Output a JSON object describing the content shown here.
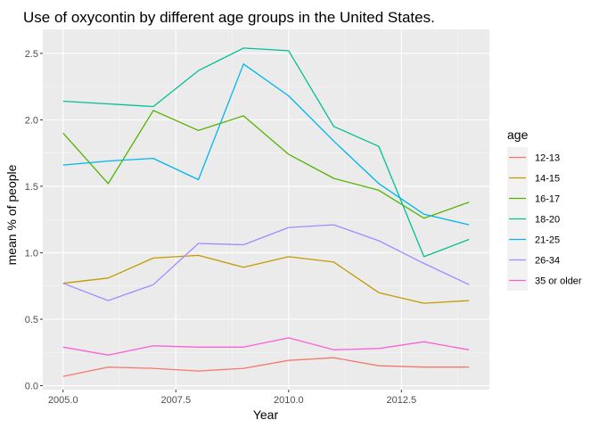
{
  "chart_data": {
    "type": "line",
    "title": "Use of oxycontin by different age groups in the United States.",
    "xlabel": "Year",
    "ylabel": "mean % of people",
    "x": [
      2005,
      2006,
      2007,
      2008,
      2009,
      2010,
      2011,
      2012,
      2013,
      2014
    ],
    "xlim": [
      2004.55,
      2014.45
    ],
    "ylim": [
      -0.03,
      2.68
    ],
    "x_ticks": [
      2005.0,
      2007.5,
      2010.0,
      2012.5
    ],
    "x_tick_labels": [
      "2005.0",
      "2007.5",
      "2010.0",
      "2012.5"
    ],
    "y_ticks": [
      0.0,
      0.5,
      1.0,
      1.5,
      2.0,
      2.5
    ],
    "y_tick_labels": [
      "0.0",
      "0.5",
      "1.0",
      "1.5",
      "2.0",
      "2.5"
    ],
    "grid": true,
    "legend": {
      "title": "age",
      "position": "right"
    },
    "series": [
      {
        "name": "12-13",
        "color": "#F8766D",
        "values": [
          0.07,
          0.14,
          0.13,
          0.11,
          0.13,
          0.19,
          0.21,
          0.15,
          0.14,
          0.14
        ]
      },
      {
        "name": "14-15",
        "color": "#C49A00",
        "values": [
          0.77,
          0.81,
          0.96,
          0.98,
          0.89,
          0.97,
          0.93,
          0.7,
          0.62,
          0.64
        ]
      },
      {
        "name": "16-17",
        "color": "#53B400",
        "values": [
          1.9,
          1.52,
          2.07,
          1.92,
          2.03,
          1.74,
          1.56,
          1.47,
          1.26,
          1.38
        ]
      },
      {
        "name": "18-20",
        "color": "#00C094",
        "values": [
          2.14,
          2.12,
          2.1,
          2.37,
          2.54,
          2.52,
          1.95,
          1.8,
          0.97,
          1.1
        ]
      },
      {
        "name": "21-25",
        "color": "#00B6EB",
        "values": [
          1.66,
          1.69,
          1.71,
          1.55,
          2.42,
          2.18,
          1.84,
          1.52,
          1.29,
          1.21
        ]
      },
      {
        "name": "26-34",
        "color": "#A58AFF",
        "values": [
          0.77,
          0.64,
          0.76,
          1.07,
          1.06,
          1.19,
          1.21,
          1.09,
          0.92,
          0.76
        ]
      },
      {
        "name": "35 or older",
        "color": "#FB61D7",
        "values": [
          0.29,
          0.23,
          0.3,
          0.29,
          0.29,
          0.36,
          0.27,
          0.28,
          0.33,
          0.27
        ]
      }
    ]
  }
}
